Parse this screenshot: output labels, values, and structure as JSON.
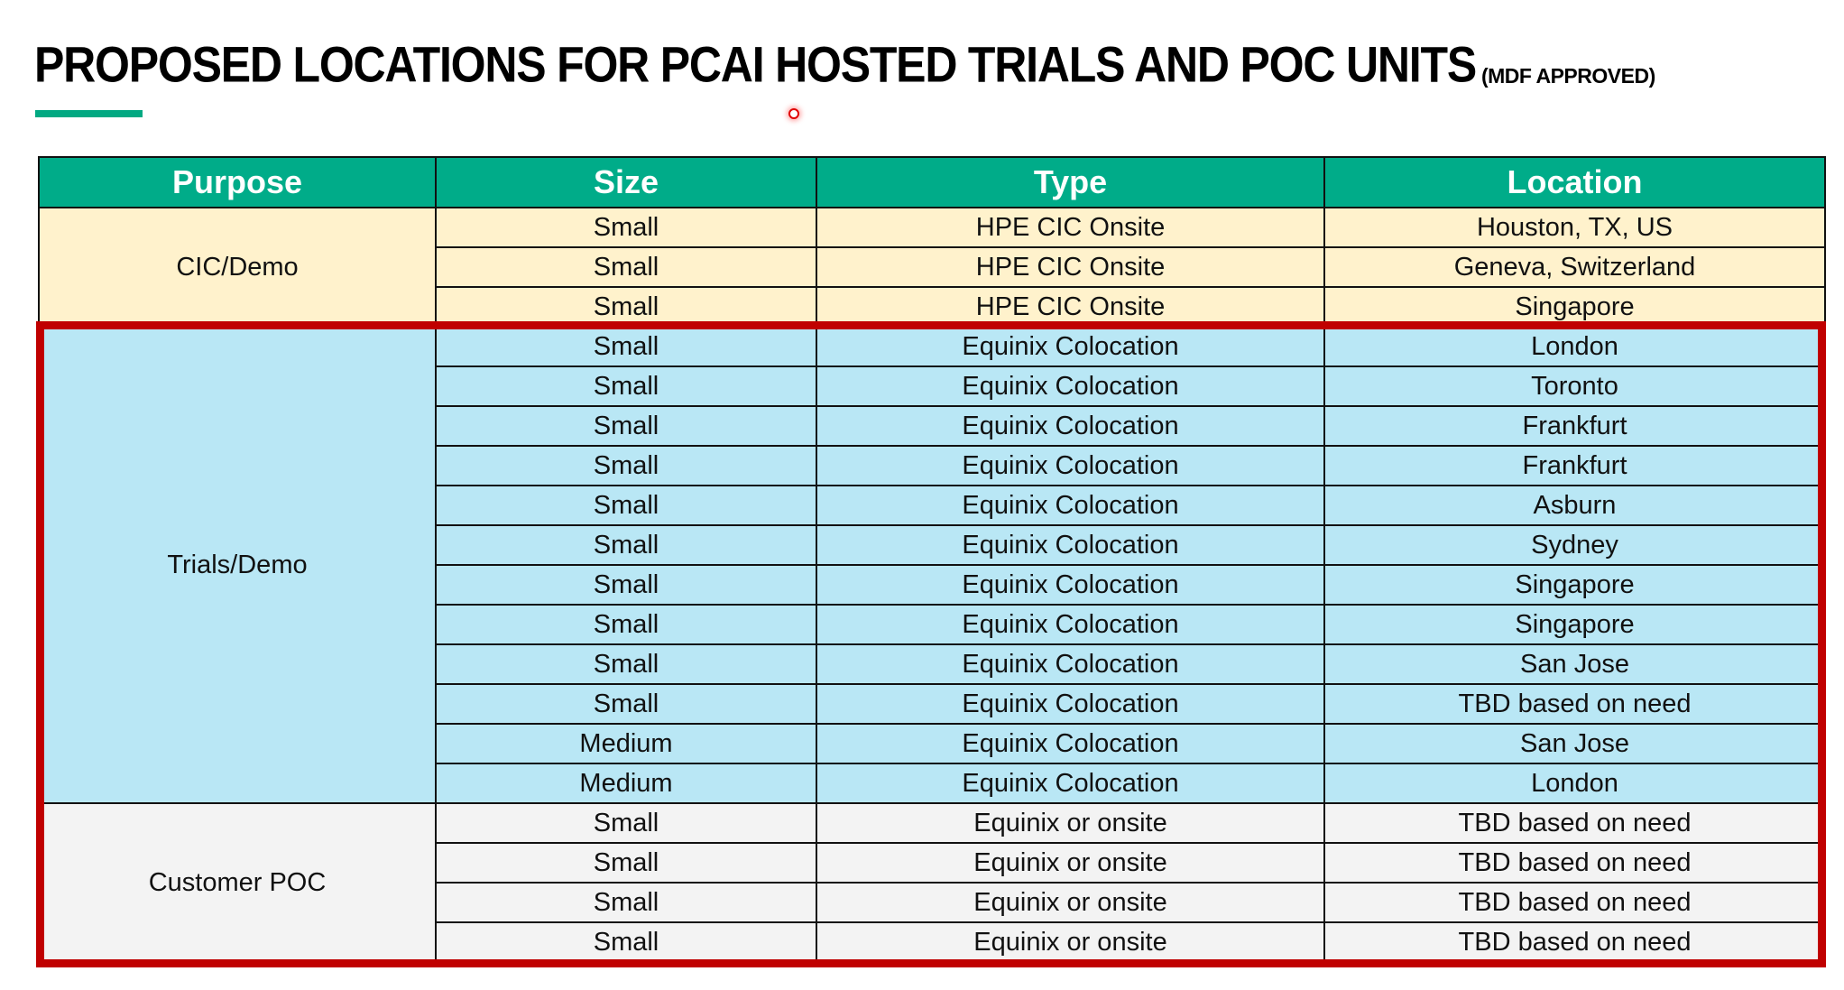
{
  "title": {
    "main": "PROPOSED LOCATIONS FOR PCAI HOSTED TRIALS AND POC UNITS",
    "sub": "(MDF APPROVED)"
  },
  "colors": {
    "accent": "#01a982",
    "header_bg": "#00ac89",
    "cic_bg": "#fff2cc",
    "trials_bg": "#b9e7f5",
    "poc_bg": "#f3f3f3",
    "highlight_border": "#c00000"
  },
  "table": {
    "columns": [
      "Purpose",
      "Size",
      "Type",
      "Location"
    ],
    "groups": [
      {
        "purpose": "CIC/Demo",
        "style": "g-cream",
        "rows": [
          [
            "Small",
            "HPE CIC Onsite",
            "Houston, TX, US"
          ],
          [
            "Small",
            "HPE CIC Onsite",
            "Geneva, Switzerland"
          ],
          [
            "Small",
            "HPE CIC Onsite",
            "Singapore"
          ]
        ]
      },
      {
        "purpose": "Trials/Demo",
        "style": "g-blue",
        "rows": [
          [
            "Small",
            "Equinix Colocation",
            "London"
          ],
          [
            "Small",
            "Equinix Colocation",
            "Toronto"
          ],
          [
            "Small",
            "Equinix Colocation",
            "Frankfurt"
          ],
          [
            "Small",
            "Equinix Colocation",
            "Frankfurt"
          ],
          [
            "Small",
            "Equinix Colocation",
            "Asburn"
          ],
          [
            "Small",
            "Equinix Colocation",
            "Sydney"
          ],
          [
            "Small",
            "Equinix Colocation",
            "Singapore"
          ],
          [
            "Small",
            "Equinix Colocation",
            "Singapore"
          ],
          [
            "Small",
            "Equinix Colocation",
            "San Jose"
          ],
          [
            "Small",
            "Equinix Colocation",
            "TBD based on need"
          ],
          [
            "Medium",
            "Equinix Colocation",
            "San Jose"
          ],
          [
            "Medium",
            "Equinix Colocation",
            "London"
          ]
        ]
      },
      {
        "purpose": "Customer POC",
        "style": "g-gray",
        "rows": [
          [
            "Small",
            "Equinix or onsite",
            "TBD based on need"
          ],
          [
            "Small",
            "Equinix or onsite",
            "TBD based on need"
          ],
          [
            "Small",
            "Equinix or onsite",
            "TBD based on need"
          ],
          [
            "Small",
            "Equinix or onsite",
            "TBD based on need"
          ]
        ]
      }
    ]
  }
}
